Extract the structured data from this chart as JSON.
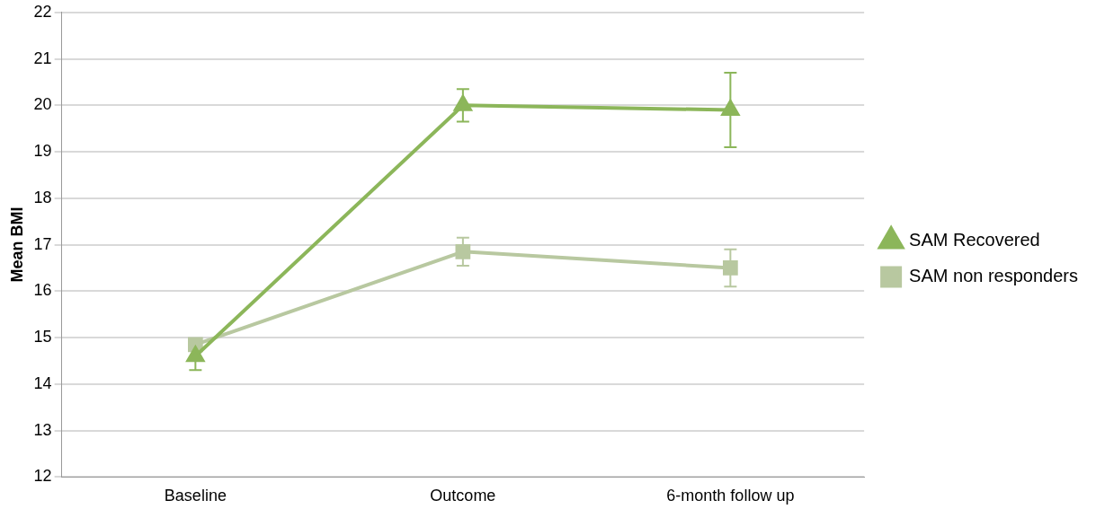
{
  "chart_data": {
    "type": "line",
    "ylabel": "Mean BMI",
    "categories": [
      "Baseline",
      "Outcome",
      "6-month follow up"
    ],
    "series": [
      {
        "name": "SAM Recovered",
        "color": "#8cb65a",
        "marker": "triangle",
        "values": [
          14.6,
          20.0,
          19.9
        ],
        "errors": [
          0.3,
          0.35,
          0.8
        ]
      },
      {
        "name": "SAM non responders",
        "color": "#b8c8a0",
        "marker": "square",
        "values": [
          14.85,
          16.85,
          16.5
        ],
        "errors": [
          null,
          0.3,
          0.4
        ]
      }
    ],
    "ylim": [
      12,
      22
    ],
    "yticks": [
      12,
      13,
      14,
      15,
      16,
      17,
      18,
      19,
      20,
      21,
      22
    ],
    "grid": "y",
    "legend": "right"
  }
}
